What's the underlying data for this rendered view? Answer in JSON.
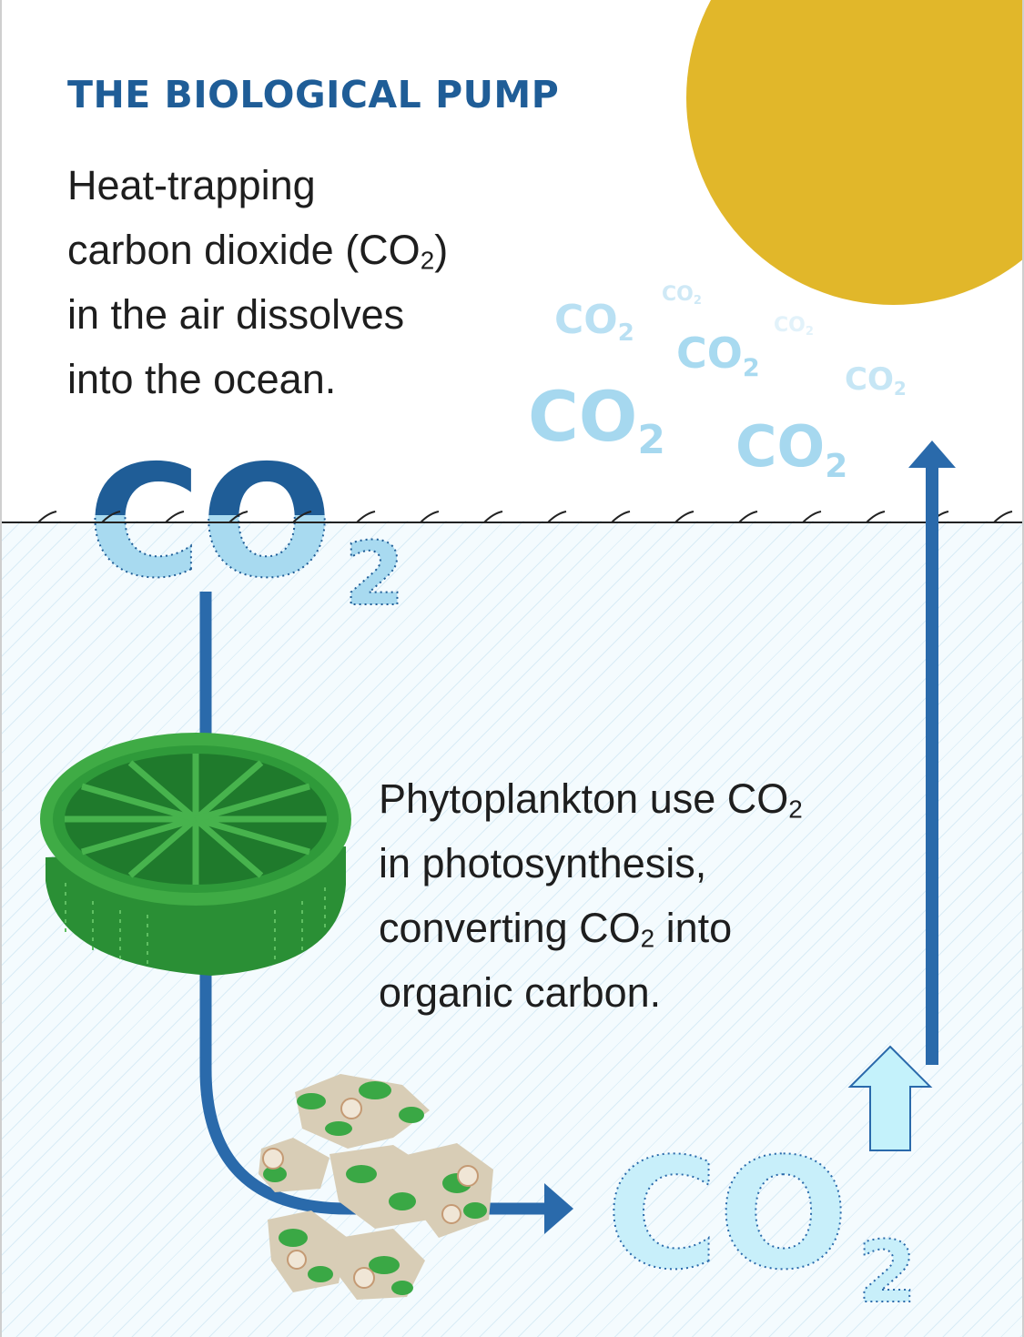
{
  "title": "THE BIOLOGICAL PUMP",
  "intro": {
    "line1": "Heat-trapping",
    "line2_prefix": "carbon dioxide (CO",
    "line2_sub": "2",
    "line2_suffix": ")",
    "line3": "in the air dissolves",
    "line4": "into the ocean."
  },
  "phytoplankton_text": {
    "line1_prefix": "Phytoplankton use CO",
    "line1_sub": "2",
    "line2": "in photosynthesis,",
    "line3_prefix": "converting CO",
    "line3_sub": "2",
    "line3_suffix": " into",
    "line4": "organic carbon."
  },
  "co2_label": {
    "main": "CO",
    "sub": "2"
  },
  "colors": {
    "title": "#1f5d97",
    "sun": "#e1b72a",
    "arrow_blue": "#2a6aab",
    "co2_light": "#a8daf0",
    "co2_dark": "#1f5d97",
    "plankton_green": "#2f9a3a"
  },
  "icons": [
    "sun-icon",
    "phytoplankton-diatom-icon",
    "organic-carbon-particles-icon",
    "up-arrow-icon"
  ]
}
